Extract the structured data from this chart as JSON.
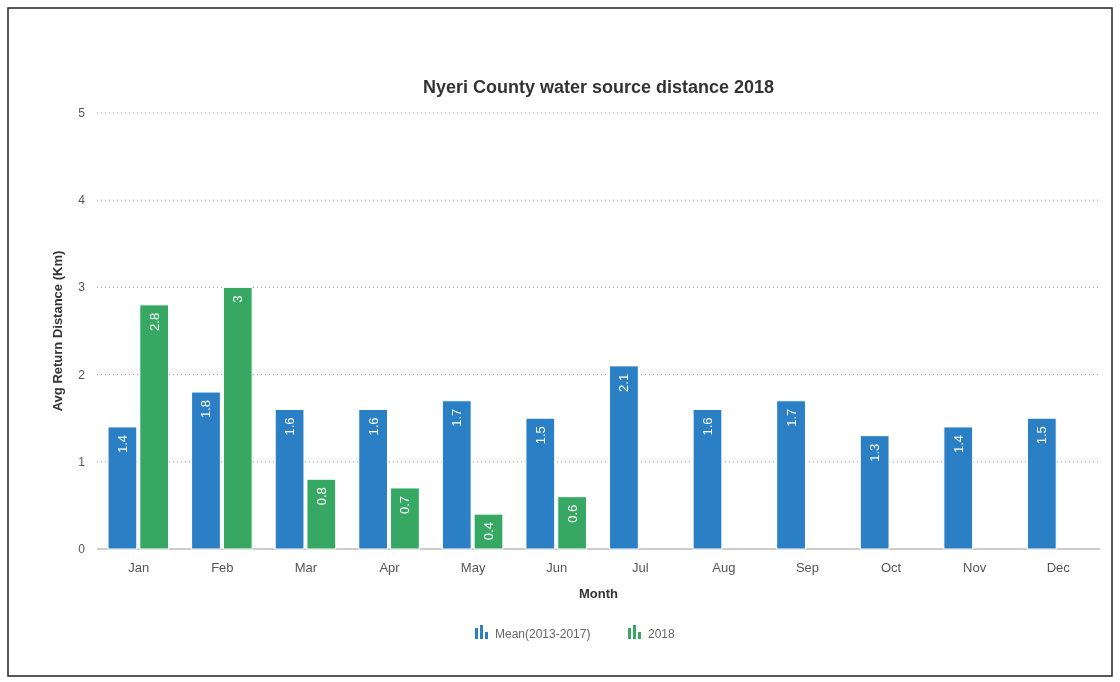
{
  "chart_data": {
    "type": "bar",
    "title": "Nyeri County water source distance 2018",
    "xlabel": "Month",
    "ylabel": "Avg Return Distance (Km)",
    "categories": [
      "Jan",
      "Feb",
      "Mar",
      "Apr",
      "May",
      "Jun",
      "Jul",
      "Aug",
      "Sep",
      "Oct",
      "Nov",
      "Dec"
    ],
    "series": [
      {
        "name": "Mean(2013-2017)",
        "color": "#2b7fc4",
        "values": [
          1.4,
          1.8,
          1.6,
          1.6,
          1.7,
          1.5,
          2.1,
          1.6,
          1.7,
          1.3,
          1.4,
          1.5
        ]
      },
      {
        "name": "2018",
        "color": "#36a864",
        "values": [
          2.8,
          3,
          0.8,
          0.7,
          0.4,
          0.6,
          null,
          null,
          null,
          null,
          null,
          null
        ]
      }
    ],
    "ylim": [
      0,
      5
    ],
    "yticks": [
      0,
      1,
      2,
      3,
      4,
      5
    ],
    "grid": "y",
    "legend": "bottom",
    "data_labels": true
  }
}
